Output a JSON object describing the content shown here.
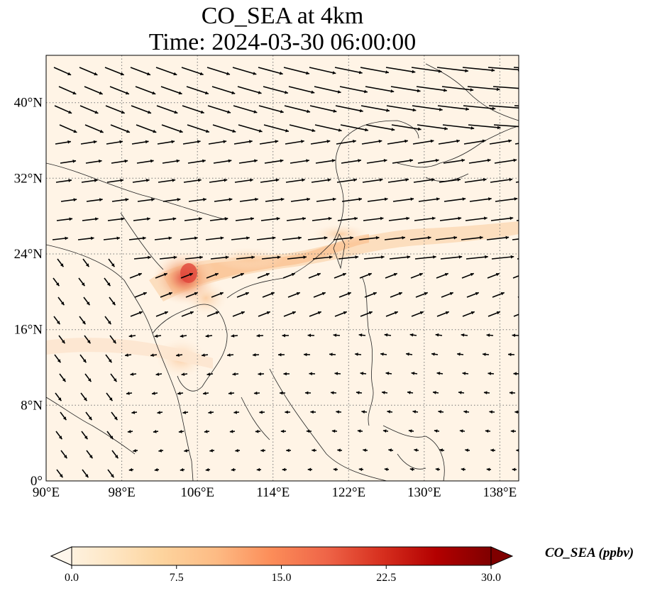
{
  "title": {
    "line1": "CO_SEA at 4km",
    "line2": "Time: 2024-03-30 06:00:00"
  },
  "map": {
    "extent": {
      "lon": [
        90,
        140
      ],
      "lat": [
        0,
        45
      ]
    },
    "gridlines": "dotted",
    "x_ticks": [
      "90°E",
      "98°E",
      "106°E",
      "114°E",
      "122°E",
      "130°E",
      "138°E"
    ],
    "y_ticks": [
      "0°",
      "8°N",
      "16°N",
      "24°N",
      "32°N",
      "40°N"
    ],
    "plume_color_max": "#e0453a",
    "arrow_color": "#000000",
    "field_variable": "CO_SEA",
    "overlay": "wind vectors"
  },
  "colorbar": {
    "label": "CO_SEA (ppbv)",
    "ticks": [
      "0.0",
      "7.5",
      "15.0",
      "22.5",
      "30.0"
    ],
    "range": [
      0,
      30
    ],
    "colormap": "OrRd",
    "extend": "both",
    "colors": [
      "#fff7ec",
      "#fee8c8",
      "#fdd49e",
      "#fdbb84",
      "#fc8d59",
      "#ef6548",
      "#d7301f",
      "#b30000",
      "#7f0000"
    ]
  }
}
